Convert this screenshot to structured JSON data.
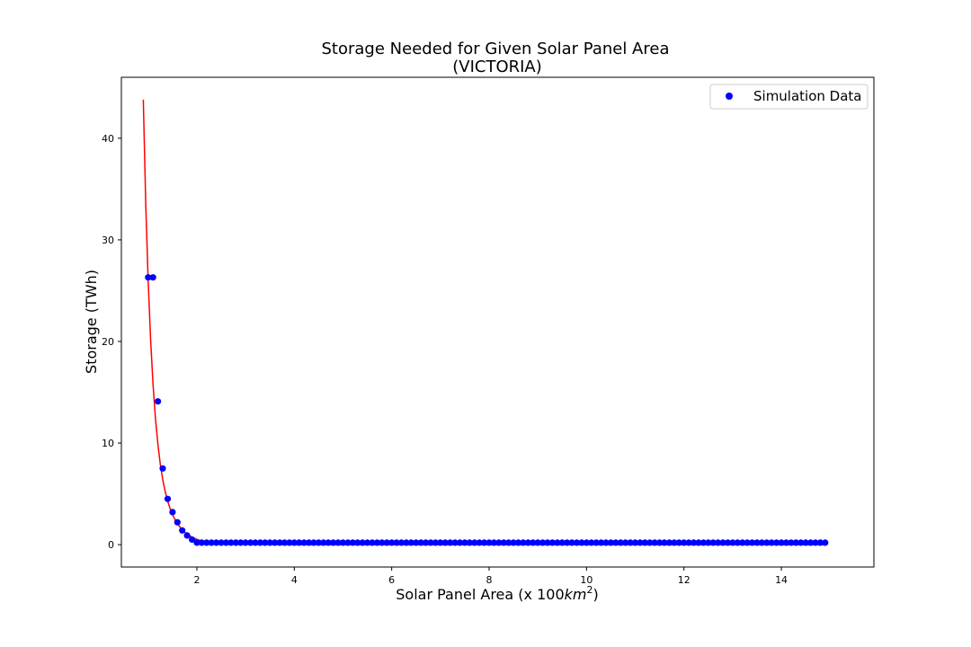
{
  "chart_data": {
    "type": "scatter",
    "title": "Storage Needed for Given Solar Panel Area",
    "subtitle": "(VICTORIA)",
    "xlabel_prefix": "Solar Panel Area (x 100",
    "xlabel_unit": "km",
    "xlabel_exponent": "2",
    "xlabel_suffix": ")",
    "ylabel": "Storage (TWh)",
    "xlim": [
      0.45,
      15.9
    ],
    "ylim": [
      -2.2,
      46
    ],
    "x_ticks": [
      2,
      4,
      6,
      8,
      10,
      12,
      14
    ],
    "y_ticks": [
      0,
      10,
      20,
      30,
      40
    ],
    "grid": false,
    "legend": {
      "position": "top-right",
      "entries": [
        "Simulation Data"
      ]
    },
    "colors": {
      "points": "#0000ff",
      "fit": "#ff0000"
    },
    "series": [
      {
        "name": "Simulation Data",
        "kind": "scatter",
        "x": [
          1.0,
          1.1,
          1.2,
          1.3,
          1.4,
          1.5,
          1.6,
          1.7,
          1.8,
          1.9,
          2.0,
          2.1,
          2.2,
          2.3,
          2.4,
          2.5,
          2.6,
          2.7,
          2.8,
          2.9,
          3.0,
          3.1,
          3.2,
          3.3,
          3.4,
          3.5,
          3.6,
          3.7,
          3.8,
          3.9,
          4.0,
          4.1,
          4.2,
          4.3,
          4.4,
          4.5,
          4.6,
          4.7,
          4.8,
          4.9,
          5.0,
          5.1,
          5.2,
          5.3,
          5.4,
          5.5,
          5.6,
          5.7,
          5.8,
          5.9,
          6.0,
          6.1,
          6.2,
          6.3,
          6.4,
          6.5,
          6.6,
          6.7,
          6.8,
          6.9,
          7.0,
          7.1,
          7.2,
          7.3,
          7.4,
          7.5,
          7.6,
          7.7,
          7.8,
          7.9,
          8.0,
          8.1,
          8.2,
          8.3,
          8.4,
          8.5,
          8.6,
          8.7,
          8.8,
          8.9,
          9.0,
          9.1,
          9.2,
          9.3,
          9.4,
          9.5,
          9.6,
          9.7,
          9.8,
          9.9,
          10.0,
          10.1,
          10.2,
          10.3,
          10.4,
          10.5,
          10.6,
          10.7,
          10.8,
          10.9,
          11.0,
          11.1,
          11.2,
          11.3,
          11.4,
          11.5,
          11.6,
          11.7,
          11.8,
          11.9,
          12.0,
          12.1,
          12.2,
          12.3,
          12.4,
          12.5,
          12.6,
          12.7,
          12.8,
          12.9,
          13.0,
          13.1,
          13.2,
          13.3,
          13.4,
          13.5,
          13.6,
          13.7,
          13.8,
          13.9,
          14.0,
          14.1,
          14.2,
          14.3,
          14.4,
          14.5,
          14.6,
          14.7,
          14.8,
          14.9
        ],
        "y": [
          26.3,
          26.3,
          14.1,
          7.5,
          4.5,
          3.2,
          2.2,
          1.4,
          0.9,
          0.5,
          0.2,
          0.2,
          0.2,
          0.2,
          0.2,
          0.2,
          0.2,
          0.2,
          0.2,
          0.2,
          0.2,
          0.2,
          0.2,
          0.2,
          0.2,
          0.2,
          0.2,
          0.2,
          0.2,
          0.2,
          0.2,
          0.2,
          0.2,
          0.2,
          0.2,
          0.2,
          0.2,
          0.2,
          0.2,
          0.2,
          0.2,
          0.2,
          0.2,
          0.2,
          0.2,
          0.2,
          0.2,
          0.2,
          0.2,
          0.2,
          0.2,
          0.2,
          0.2,
          0.2,
          0.2,
          0.2,
          0.2,
          0.2,
          0.2,
          0.2,
          0.2,
          0.2,
          0.2,
          0.2,
          0.2,
          0.2,
          0.2,
          0.2,
          0.2,
          0.2,
          0.2,
          0.2,
          0.2,
          0.2,
          0.2,
          0.2,
          0.2,
          0.2,
          0.2,
          0.2,
          0.2,
          0.2,
          0.2,
          0.2,
          0.2,
          0.2,
          0.2,
          0.2,
          0.2,
          0.2,
          0.2,
          0.2,
          0.2,
          0.2,
          0.2,
          0.2,
          0.2,
          0.2,
          0.2,
          0.2,
          0.2,
          0.2,
          0.2,
          0.2,
          0.2,
          0.2,
          0.2,
          0.2,
          0.2,
          0.2,
          0.2,
          0.2,
          0.2,
          0.2,
          0.2,
          0.2,
          0.2,
          0.2,
          0.2,
          0.2,
          0.2,
          0.2,
          0.2,
          0.2,
          0.2,
          0.2,
          0.2,
          0.2,
          0.2,
          0.2,
          0.2,
          0.2,
          0.2,
          0.2,
          0.2,
          0.2,
          0.2,
          0.2,
          0.2,
          0.2
        ]
      },
      {
        "kind": "line",
        "x": [
          0.9,
          0.95,
          1.0,
          1.05,
          1.1,
          1.15,
          1.2,
          1.25,
          1.3,
          1.35,
          1.4,
          1.45,
          1.5,
          1.6,
          1.7,
          1.8,
          1.9,
          2.0,
          2.1,
          2.2,
          2.3,
          2.5,
          3.0,
          4.0,
          6.0,
          8.0,
          10.0,
          12.0,
          14.0,
          14.9
        ],
        "y": [
          43.8,
          33.5,
          26.0,
          20.2,
          15.8,
          12.4,
          9.9,
          7.9,
          6.4,
          5.2,
          4.3,
          3.55,
          2.95,
          2.05,
          1.45,
          1.03,
          0.74,
          0.52,
          0.36,
          0.25,
          0.17,
          0.09,
          0.03,
          0.0,
          0.0,
          0.0,
          0.0,
          0.0,
          0.0,
          0.0
        ]
      }
    ]
  }
}
